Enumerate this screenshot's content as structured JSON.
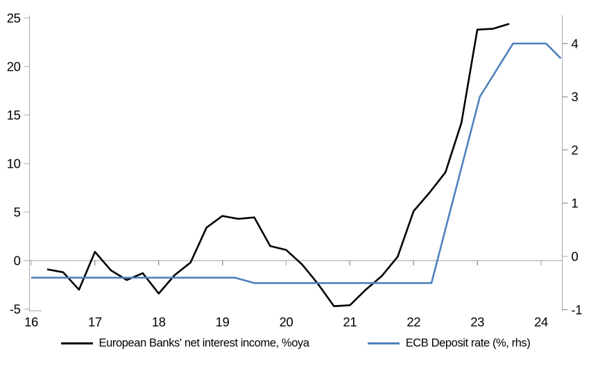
{
  "chart_data": {
    "type": "line",
    "title": "",
    "legend_position": "bottom",
    "grid": "zero-line-only",
    "x_axis": {
      "tick_values": [
        16,
        17,
        18,
        19,
        20,
        21,
        22,
        23,
        24
      ],
      "tick_labels": [
        "16",
        "17",
        "18",
        "19",
        "20",
        "21",
        "22",
        "23",
        "24"
      ],
      "range": [
        16,
        24.35
      ]
    },
    "y_left_axis": {
      "tick_values": [
        -5,
        0,
        5,
        10,
        15,
        20,
        25
      ],
      "tick_labels": [
        "-5",
        "0",
        "5",
        "10",
        "15",
        "20",
        "25"
      ],
      "range": [
        -5.2,
        25.4
      ]
    },
    "y_right_axis": {
      "tick_values": [
        -1,
        0,
        1,
        2,
        3,
        4
      ],
      "tick_labels": [
        "-1",
        "0",
        "1",
        "2",
        "3",
        "4"
      ],
      "range": [
        -1.05,
        4.55
      ]
    },
    "series": [
      {
        "name": "European Banks' net interest income, %oya",
        "color": "#000000",
        "axis": "left",
        "x": [
          16.25,
          16.5,
          16.75,
          17.0,
          17.25,
          17.5,
          17.75,
          18.0,
          18.25,
          18.5,
          18.75,
          19.0,
          19.25,
          19.5,
          19.75,
          20.0,
          20.25,
          20.5,
          20.75,
          21.0,
          21.25,
          21.5,
          21.75,
          22.0,
          22.25,
          22.5,
          22.75,
          23.0,
          23.25,
          23.5
        ],
        "values": [
          -0.9,
          -1.2,
          -3.0,
          0.9,
          -1.0,
          -2.0,
          -1.3,
          -3.4,
          -1.5,
          -0.2,
          3.4,
          4.6,
          4.3,
          4.45,
          1.5,
          1.1,
          -0.4,
          -2.4,
          -4.7,
          -4.6,
          -3.0,
          -1.6,
          0.4,
          5.1,
          7.0,
          9.1,
          14.2,
          23.8,
          23.9,
          24.4
        ]
      },
      {
        "name": "ECB Deposit rate (%, rhs)",
        "color": "#4f81bd",
        "axis": "right",
        "x": [
          16.0,
          19.2,
          19.5,
          22.28,
          23.04,
          23.56,
          24.08,
          24.31
        ],
        "values": [
          -0.4,
          -0.4,
          -0.5,
          -0.5,
          3.0,
          4.0,
          4.0,
          3.72
        ]
      }
    ]
  },
  "colors": {
    "axis_line": "#a6a6a6",
    "zero_line": "#9d9d9d",
    "background": "#ffffff",
    "text": "#000000"
  }
}
